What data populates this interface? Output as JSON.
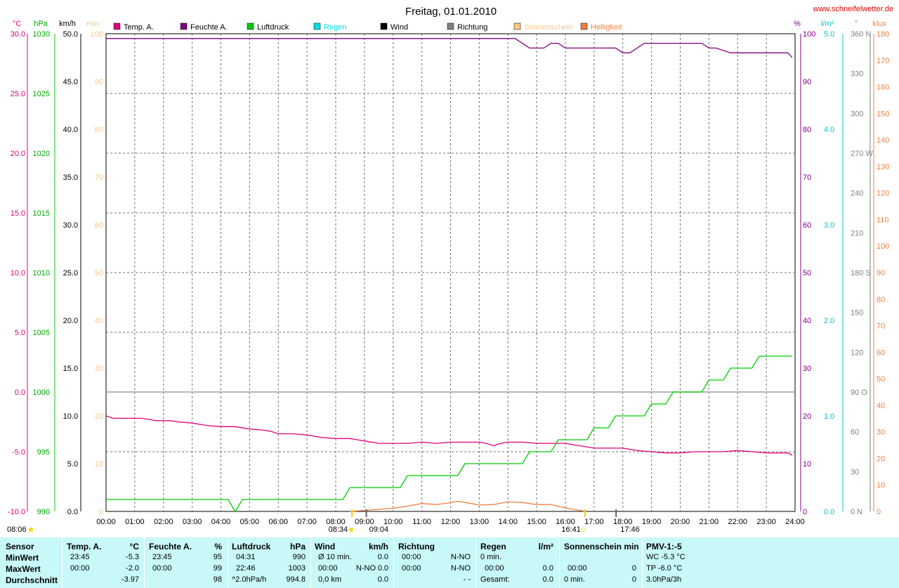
{
  "header": {
    "title": "Freitag, 01.01.2010",
    "website": "www.schneifelwetter.de"
  },
  "axes_units": {
    "temp": "°C",
    "pressure": "hPa",
    "wind": "km/h",
    "sun_min": "min",
    "humidity": "%",
    "rain": "l/m²",
    "direction": "°",
    "light": "klux"
  },
  "legend": [
    {
      "label": "Temp. A.",
      "color": "#e0007a"
    },
    {
      "label": "Feuchte A.",
      "color": "#800080"
    },
    {
      "label": "Luftdruck",
      "color": "#00cc00"
    },
    {
      "label": "Regen",
      "color": "#00e0e0"
    },
    {
      "label": "Wind",
      "color": "#000000"
    },
    {
      "label": "Richtung",
      "color": "#808080"
    },
    {
      "label": "Sonnenschein",
      "color": "#f8c880"
    },
    {
      "label": "Helligkeit",
      "color": "#f08040"
    }
  ],
  "axis_ticks": {
    "temp": [
      "30.0",
      "25.0",
      "20.0",
      "15.0",
      "10.0",
      "5.0",
      "0.0",
      "-5.0",
      "-10.0"
    ],
    "pressure": [
      "1030",
      "1025",
      "1020",
      "1015",
      "1010",
      "1005",
      "1000",
      "995",
      "990"
    ],
    "wind": [
      "50.0",
      "45.0",
      "40.0",
      "35.0",
      "30.0",
      "25.0",
      "20.0",
      "15.0",
      "10.0",
      "5.0",
      "0.0"
    ],
    "sun_min": [
      "100",
      "90",
      "80",
      "70",
      "60",
      "50",
      "40",
      "30",
      "20",
      "10",
      "0"
    ],
    "humidity": [
      "100",
      "90",
      "80",
      "70",
      "60",
      "50",
      "40",
      "30",
      "20",
      "10",
      "0"
    ],
    "rain": [
      "5.0",
      "4.0",
      "3.0",
      "2.0",
      "1.0",
      "0.0"
    ],
    "direction": [
      "360 N",
      "330",
      "300",
      "270 W",
      "240",
      "210",
      "180 S",
      "150",
      "120",
      "90 O",
      "60",
      "30",
      "0 N"
    ],
    "light": [
      "180",
      "170",
      "160",
      "150",
      "140",
      "130",
      "120",
      "110",
      "100",
      "90",
      "80",
      "70",
      "60",
      "50",
      "40",
      "30",
      "20",
      "10",
      "0"
    ],
    "time": [
      "00:00",
      "01:00",
      "02:00",
      "03:00",
      "04:00",
      "05:00",
      "06:00",
      "07:00",
      "08:00",
      "09:00",
      "10:00",
      "11:00",
      "12:00",
      "13:00",
      "14:00",
      "15:00",
      "16:00",
      "17:00",
      "18:00",
      "19:00",
      "20:00",
      "21:00",
      "22:00",
      "23:00",
      "24:00"
    ]
  },
  "markers": {
    "sunrise": "08:34",
    "sunset": "16:41",
    "sun_start": "09:04",
    "sun_end": "17:46",
    "extra": "08:06"
  },
  "chart_data": {
    "type": "line",
    "title": "Freitag, 01.01.2010",
    "x_unit": "hours",
    "xlim": [
      0,
      24
    ],
    "series": [
      {
        "name": "Temp. A.",
        "axis": "temp",
        "ylim": [
          -10,
          30
        ],
        "x": [
          0,
          0.25,
          1.25,
          1.75,
          2.25,
          2.5,
          3.0,
          3.5,
          4.0,
          4.5,
          5.0,
          5.5,
          5.75,
          6.0,
          6.5,
          7.0,
          7.5,
          8.0,
          8.5,
          8.75,
          9.0,
          9.5,
          10.0,
          10.5,
          11.0,
          11.5,
          12.0,
          12.5,
          13.0,
          13.25,
          13.5,
          13.75,
          14.0,
          14.5,
          15.0,
          15.5,
          16.0,
          16.5,
          17.0,
          17.5,
          18.0,
          18.5,
          19.0,
          19.5,
          20.0,
          20.5,
          21.0,
          21.5,
          22.0,
          22.5,
          23.0,
          23.5,
          23.75,
          23.9
        ],
        "y": [
          -2.0,
          -2.2,
          -2.2,
          -2.4,
          -2.4,
          -2.5,
          -2.6,
          -2.8,
          -2.9,
          -2.9,
          -3.1,
          -3.2,
          -3.3,
          -3.5,
          -3.5,
          -3.6,
          -3.8,
          -3.9,
          -3.9,
          -4.0,
          -4.1,
          -4.3,
          -4.3,
          -4.3,
          -4.2,
          -4.3,
          -4.2,
          -4.2,
          -4.2,
          -4.3,
          -4.5,
          -4.3,
          -4.2,
          -4.2,
          -4.3,
          -4.3,
          -4.3,
          -4.5,
          -4.7,
          -4.7,
          -4.7,
          -4.9,
          -5.0,
          -5.1,
          -5.1,
          -5.0,
          -5.0,
          -5.0,
          -4.9,
          -5.0,
          -5.1,
          -5.1,
          -5.1,
          -5.3
        ]
      },
      {
        "name": "Feuchte A.",
        "axis": "humidity",
        "ylim": [
          0,
          100
        ],
        "x": [
          0,
          14.25,
          14.75,
          15.25,
          15.5,
          15.75,
          16.0,
          17.75,
          18.0,
          18.25,
          18.75,
          19.0,
          19.5,
          20.0,
          20.75,
          21.0,
          21.25,
          21.75,
          22.5,
          23.0,
          23.5,
          23.75,
          23.9
        ],
        "y": [
          99,
          99,
          97,
          97,
          98,
          98,
          97,
          97,
          96,
          96,
          98,
          98,
          98,
          98,
          98,
          97,
          97,
          96,
          96,
          96,
          96,
          96,
          95
        ]
      },
      {
        "name": "Luftdruck",
        "axis": "pressure",
        "ylim": [
          990,
          1030
        ],
        "x": [
          0,
          4.25,
          4.5,
          4.75,
          5.0,
          8.25,
          8.5,
          10.25,
          10.5,
          12.25,
          12.5,
          14.5,
          14.75,
          15.5,
          15.75,
          16.75,
          17.0,
          17.5,
          17.75,
          18.75,
          19.0,
          19.5,
          19.75,
          20.75,
          21.0,
          21.5,
          21.75,
          22.5,
          22.75,
          23.9
        ],
        "y": [
          991,
          991,
          990,
          991,
          991,
          991,
          992,
          992,
          993,
          993,
          994,
          994,
          995,
          995,
          996,
          996,
          997,
          997,
          998,
          998,
          999,
          999,
          1000,
          1000,
          1001,
          1001,
          1002,
          1002,
          1003,
          1003
        ]
      },
      {
        "name": "Helligkeit",
        "axis": "light",
        "ylim": [
          0,
          180
        ],
        "x": [
          8.5,
          9.0,
          9.5,
          10.0,
          10.5,
          11.0,
          11.5,
          12.0,
          12.25,
          12.5,
          13.0,
          13.5,
          14.0,
          14.5,
          15.0,
          15.5,
          16.0,
          16.5,
          16.7
        ],
        "y": [
          0,
          0.4,
          0.8,
          1.2,
          2.0,
          3.0,
          2.6,
          3.3,
          3.8,
          3.4,
          2.4,
          2.6,
          3.6,
          3.4,
          2.6,
          2.6,
          1.3,
          0.4,
          0
        ]
      }
    ],
    "xlabel": "",
    "ylabel": "",
    "grid": true,
    "legend_position": "top"
  },
  "table": {
    "columns": [
      {
        "title": "Sensor",
        "unit": ""
      },
      {
        "title": "Temp. A.",
        "unit": "°C"
      },
      {
        "title": "Feuchte A.",
        "unit": "%"
      },
      {
        "title": "Luftdruck",
        "unit": "hPa"
      },
      {
        "title": "Wind",
        "unit": "km/h"
      },
      {
        "title": "Richtung",
        "unit": ""
      },
      {
        "title": "Regen",
        "unit": "l/m²"
      },
      {
        "title": "Sonnenschein min",
        "unit": ""
      },
      {
        "title": "PMV-1:-5",
        "unit": ""
      }
    ],
    "row_labels": [
      "MinWert",
      "MaxWert",
      "Durchschnitt"
    ],
    "temp": {
      "min_time": "23:45",
      "min": "-5.3",
      "max_time": "00:00",
      "max": "-2.0",
      "avg": "-3.97"
    },
    "humidity": {
      "min_time": "23:45",
      "min": "95",
      "max_time": "00:00",
      "max": "99",
      "avg": "98"
    },
    "pressure": {
      "min_time": "04:31",
      "min": "990",
      "max_time": "22:46",
      "max": "1003",
      "trend": "^2.0hPa/h",
      "avg": "994.8"
    },
    "wind": {
      "min_label": "Ø 10 min.",
      "min": "0.0",
      "max_time": "00:00",
      "max_dir": "N-NO",
      "max": "0.0",
      "avg_label": "0,0 km",
      "avg": "0.0"
    },
    "direction": {
      "min_time": "00:00",
      "min": "N-NO",
      "max_time": "00:00",
      "max": "N-NO",
      "avg": "- -"
    },
    "rain": {
      "min_label": "0 min.",
      "max_time": "00:00",
      "max": "0.0",
      "avg_label": "Gesamt:",
      "avg": "0.0"
    },
    "sunshine": {
      "max_time": "00:00",
      "max": "0",
      "avg_label": "0 min.",
      "avg": "0"
    },
    "pmv": {
      "min": "WC -5.3 °C",
      "max": "TP -6.0 °C",
      "avg": "3.0hPa/3h"
    }
  }
}
